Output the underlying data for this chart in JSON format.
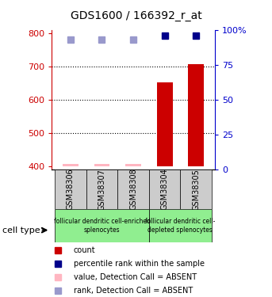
{
  "title": "GDS1600 / 166392_r_at",
  "samples": [
    "GSM38306",
    "GSM38307",
    "GSM38308",
    "GSM38304",
    "GSM38305"
  ],
  "x_positions": [
    0,
    1,
    2,
    3,
    4
  ],
  "count_values": [
    405,
    405,
    405,
    652,
    707
  ],
  "count_absent": [
    true,
    true,
    true,
    false,
    false
  ],
  "rank_values": [
    93,
    93,
    93,
    96,
    96
  ],
  "rank_absent": [
    true,
    true,
    true,
    false,
    false
  ],
  "ylim_left": [
    390,
    810
  ],
  "ylim_right": [
    0,
    100
  ],
  "yticks_left": [
    400,
    500,
    600,
    700,
    800
  ],
  "yticks_right": [
    0,
    25,
    50,
    75,
    100
  ],
  "bar_color_present": "#CC0000",
  "bar_color_absent": "#FFB6C1",
  "rank_color_present": "#00008B",
  "rank_color_absent": "#9999CC",
  "bar_base": 400,
  "sample_box_color": "#CCCCCC",
  "left_axis_color": "#CC0000",
  "right_axis_color": "#0000CC",
  "grid_dotted_at": [
    500,
    600,
    700
  ],
  "group1_label": "follicular dendritic cell-enriched\nsplenocytes",
  "group2_label": "follicular dendritic cell-\ndepleted splenocytes",
  "group_color": "#90EE90",
  "cellttype_label": "cell type",
  "legend_items": [
    {
      "color": "#CC0000",
      "label": "count"
    },
    {
      "color": "#00008B",
      "label": "percentile rank within the sample"
    },
    {
      "color": "#FFB6C1",
      "label": "value, Detection Call = ABSENT"
    },
    {
      "color": "#9999CC",
      "label": "rank, Detection Call = ABSENT"
    }
  ]
}
